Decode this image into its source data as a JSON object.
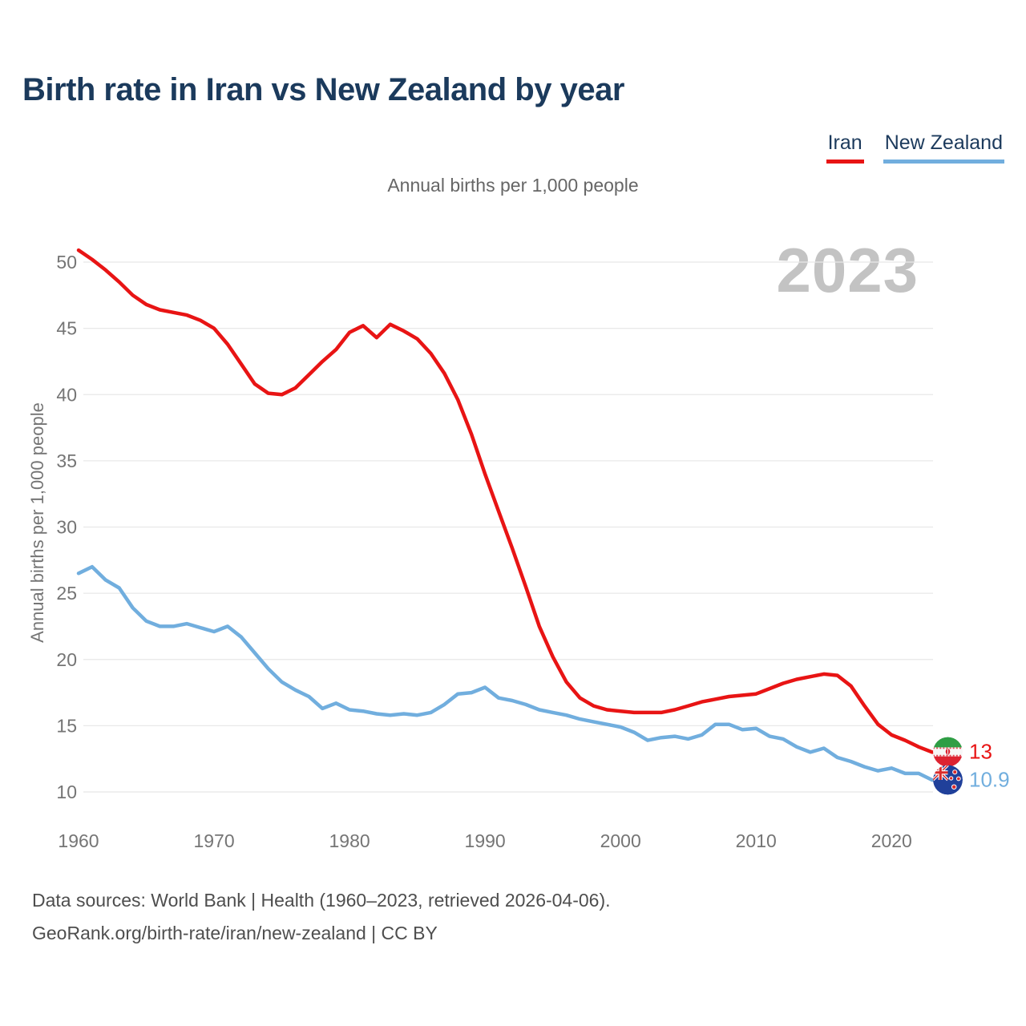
{
  "title": "Birth rate in Iran vs New Zealand by year",
  "subtitle": "Annual births per 1,000 people",
  "watermark": "2023",
  "y_axis_title": "Annual births per 1,000 people",
  "legend": {
    "items": [
      {
        "label": "Iran",
        "color": "#e81414"
      },
      {
        "label": "New Zealand",
        "color": "#71aede"
      }
    ]
  },
  "end_labels": {
    "iran": {
      "value": "13",
      "color": "#e81414",
      "flag": "iran-flag-icon"
    },
    "new_zealand": {
      "value": "10.9",
      "color": "#71aede",
      "flag": "new-zealand-flag-icon"
    }
  },
  "footer": {
    "line1": "Data sources: World Bank | Health (1960–2023, retrieved 2026-04-06).",
    "line2": "GeoRank.org/birth-rate/iran/new-zealand | CC BY"
  },
  "chart_data": {
    "type": "line",
    "title": "Birth rate in Iran vs New Zealand by year",
    "xlabel": "",
    "ylabel": "Annual births per 1,000 people",
    "x_start": 1960,
    "x_end": 2023,
    "xticks": [
      1960,
      1970,
      1980,
      1990,
      2000,
      2010,
      2020
    ],
    "yticks": [
      10,
      15,
      20,
      25,
      30,
      35,
      40,
      45,
      50
    ],
    "ylim": [
      10,
      51
    ],
    "grid": true,
    "legend_position": "top-right",
    "series": [
      {
        "name": "Iran",
        "color": "#e81414",
        "values": [
          50.9,
          50.2,
          49.4,
          48.5,
          47.5,
          46.8,
          46.4,
          46.2,
          46.0,
          45.6,
          45.0,
          43.8,
          42.3,
          40.8,
          40.1,
          40.0,
          40.5,
          41.5,
          42.5,
          43.4,
          44.7,
          45.2,
          44.3,
          45.3,
          44.8,
          44.2,
          43.1,
          41.6,
          39.6,
          37.0,
          34.0,
          31.2,
          28.4,
          25.5,
          22.5,
          20.2,
          18.3,
          17.1,
          16.5,
          16.2,
          16.1,
          16.0,
          16.0,
          16.0,
          16.2,
          16.5,
          16.8,
          17.0,
          17.2,
          17.3,
          17.4,
          17.8,
          18.2,
          18.5,
          18.7,
          18.9,
          18.8,
          18.0,
          16.5,
          15.1,
          14.3,
          13.9,
          13.4,
          13.0
        ]
      },
      {
        "name": "New Zealand",
        "color": "#71aede",
        "values": [
          26.5,
          27.0,
          26.0,
          25.4,
          23.9,
          22.9,
          22.5,
          22.5,
          22.7,
          22.4,
          22.1,
          22.5,
          21.7,
          20.5,
          19.3,
          18.3,
          17.7,
          17.2,
          16.3,
          16.7,
          16.2,
          16.1,
          15.9,
          15.8,
          15.9,
          15.8,
          16.0,
          16.6,
          17.4,
          17.5,
          17.9,
          17.1,
          16.9,
          16.6,
          16.2,
          16.0,
          15.8,
          15.5,
          15.3,
          15.1,
          14.9,
          14.5,
          13.9,
          14.1,
          14.2,
          14.0,
          14.3,
          15.1,
          15.1,
          14.7,
          14.8,
          14.2,
          14.0,
          13.4,
          13.0,
          13.3,
          12.6,
          12.3,
          11.9,
          11.6,
          11.8,
          11.4,
          11.4,
          10.9
        ]
      }
    ]
  }
}
